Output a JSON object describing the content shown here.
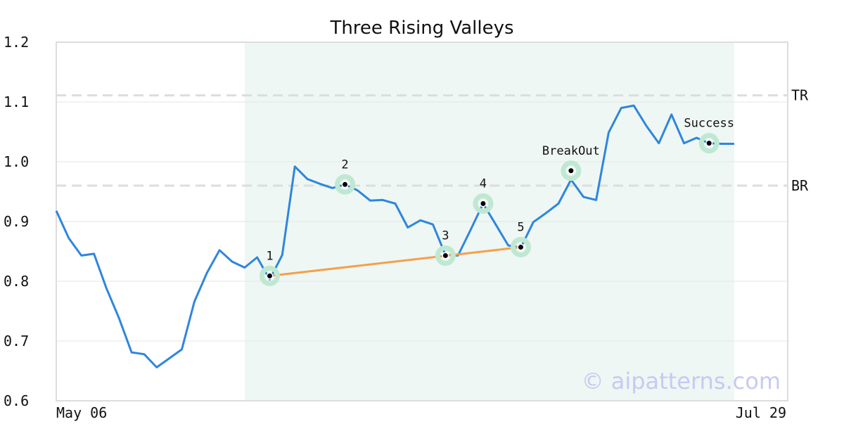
{
  "chart_data": {
    "type": "line",
    "title": "Three Rising Valleys",
    "xlabel": "",
    "ylabel": "",
    "ylim": [
      0.6,
      1.2
    ],
    "yticks": [
      "0.6",
      "0.7",
      "0.8",
      "0.9",
      "1.0",
      "1.1",
      "1.2"
    ],
    "x_tick_labels": [
      "May 06",
      "Jul 29"
    ],
    "grid": true,
    "colors": {
      "line": "#2e86de",
      "trend": "#f4a04a",
      "highlight": "#eef7f3",
      "marker_halo": "#bfe8d3",
      "dashed": "#dddddd",
      "frame": "#dddddd"
    },
    "highlight_region": {
      "start_index": 15,
      "end_index": 54
    },
    "series": [
      {
        "values": [
          0.918,
          0.872,
          0.843,
          0.846,
          0.788,
          0.738,
          0.681,
          0.678,
          0.656,
          0.671,
          0.686,
          0.766,
          0.814,
          0.852,
          0.833,
          0.823,
          0.84,
          0.803,
          0.844,
          0.992,
          0.971,
          0.963,
          0.956,
          0.962,
          0.952,
          0.935,
          0.936,
          0.93,
          0.89,
          0.902,
          0.895,
          0.844,
          0.843,
          0.886,
          0.93,
          0.895,
          0.86,
          0.856,
          0.899,
          0.914,
          0.93,
          0.97,
          0.941,
          0.936,
          1.049,
          1.09,
          1.094,
          1.06,
          1.031,
          1.079,
          1.031,
          1.04,
          1.031,
          1.03,
          1.03
        ]
      }
    ],
    "horizontal_lines": [
      {
        "label": "TR",
        "value": 1.111
      },
      {
        "label": "BR",
        "value": 0.96
      }
    ],
    "annotations": [
      {
        "label": "1",
        "index": 17,
        "value": 0.809
      },
      {
        "label": "2",
        "index": 23,
        "value": 0.962
      },
      {
        "label": "3",
        "index": 31,
        "value": 0.843
      },
      {
        "label": "4",
        "index": 34,
        "value": 0.93
      },
      {
        "label": "5",
        "index": 37,
        "value": 0.857
      },
      {
        "label": "BreakOut",
        "index": 41,
        "value": 0.985
      },
      {
        "label": "Success",
        "index": 52,
        "value": 1.031
      }
    ],
    "trend_line": {
      "from_index": 17,
      "from_value": 0.809,
      "to_index": 37,
      "to_value": 0.857
    }
  },
  "watermark": "© aipatterns.com"
}
